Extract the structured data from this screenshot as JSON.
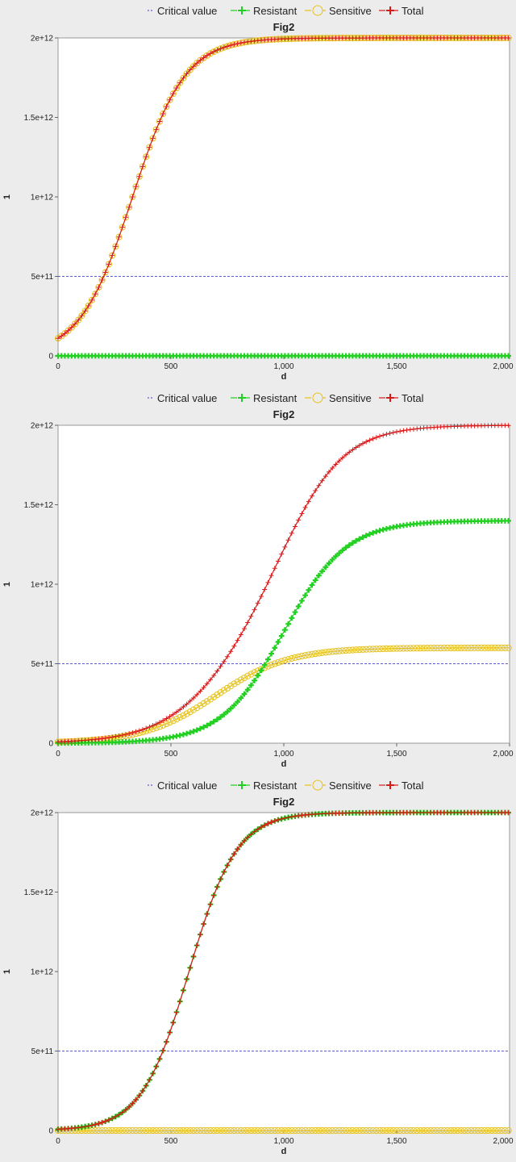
{
  "charts": [
    {
      "type": "line",
      "title": "Fig2",
      "xlabel": "d",
      "ylabel": "1",
      "xlim": [
        0,
        2000
      ],
      "ylim": [
        0,
        2000000000000
      ],
      "xticks": [
        0,
        500,
        1000,
        1500,
        2000
      ],
      "xtick_labels": [
        "0",
        "500",
        "1,000",
        "1,500",
        "2,000"
      ],
      "yticks": [
        0,
        500000000000,
        1000000000000,
        1500000000000,
        2000000000000
      ],
      "ytick_labels": [
        "0",
        "5e+11",
        "1e+12",
        "1.5e+12",
        "2e+12"
      ],
      "legend_position": "top",
      "grid": false,
      "critical_value": 500000000000,
      "series": [
        {
          "name": "Critical value",
          "color": "#5b5bd6",
          "style": "dashed"
        },
        {
          "name": "Resistant",
          "color": "#22d022",
          "marker": "plus",
          "logistic": {
            "K": 0,
            "r": 0.01,
            "x0": 0
          }
        },
        {
          "name": "Sensitive",
          "color": "#e6c21e",
          "marker": "circle",
          "logistic": {
            "K": 2000000000000,
            "r": 0.0086,
            "x0": 330
          }
        },
        {
          "name": "Total",
          "color": "#d81a1a",
          "marker": "plus",
          "logistic": {
            "K": 2000000000000,
            "r": 0.0086,
            "x0": 330
          }
        }
      ]
    },
    {
      "type": "line",
      "title": "Fig2",
      "xlabel": "d",
      "ylabel": "1",
      "xlim": [
        0,
        2000
      ],
      "ylim": [
        0,
        2000000000000
      ],
      "xticks": [
        0,
        500,
        1000,
        1500,
        2000
      ],
      "xtick_labels": [
        "0",
        "500",
        "1,000",
        "1,500",
        "2,000"
      ],
      "yticks": [
        0,
        500000000000,
        1000000000000,
        1500000000000,
        2000000000000
      ],
      "ytick_labels": [
        "0",
        "5e+11",
        "1e+12",
        "1.5e+12",
        "2e+12"
      ],
      "legend_position": "top",
      "grid": false,
      "critical_value": 500000000000,
      "series": [
        {
          "name": "Critical value",
          "color": "#5b5bd6",
          "style": "dashed"
        },
        {
          "name": "Resistant",
          "color": "#22d022",
          "marker": "plus",
          "logistic": {
            "K": 1400000000000,
            "r": 0.0072,
            "x0": 1000
          }
        },
        {
          "name": "Sensitive",
          "color": "#e6c21e",
          "marker": "circle",
          "logistic": {
            "K": 600000000000,
            "r": 0.0062,
            "x0": 700
          }
        },
        {
          "name": "Total",
          "color": "#d81a1a",
          "marker": "plus",
          "sum_of": [
            "Resistant",
            "Sensitive"
          ]
        }
      ]
    },
    {
      "type": "line",
      "title": "Fig2",
      "xlabel": "d",
      "ylabel": "1",
      "xlim": [
        0,
        2000
      ],
      "ylim": [
        0,
        2000000000000
      ],
      "xticks": [
        0,
        500,
        1000,
        1500,
        2000
      ],
      "xtick_labels": [
        "0",
        "500",
        "1,000",
        "1,500",
        "2,000"
      ],
      "yticks": [
        0,
        500000000000,
        1000000000000,
        1500000000000,
        2000000000000
      ],
      "ytick_labels": [
        "0",
        "5e+11",
        "1e+12",
        "1.5e+12",
        "2e+12"
      ],
      "legend_position": "top",
      "grid": false,
      "critical_value": 500000000000,
      "series": [
        {
          "name": "Critical value",
          "color": "#5b5bd6",
          "style": "dashed"
        },
        {
          "name": "Resistant",
          "color": "#22d022",
          "marker": "plus",
          "logistic": {
            "K": 2000000000000,
            "r": 0.0095,
            "x0": 580
          }
        },
        {
          "name": "Sensitive",
          "color": "#e6c21e",
          "marker": "circle",
          "logistic": {
            "K": 0,
            "r": 0.01,
            "x0": 0
          }
        },
        {
          "name": "Total",
          "color": "#d81a1a",
          "marker": "plus",
          "logistic": {
            "K": 2000000000000,
            "r": 0.0095,
            "x0": 580
          }
        }
      ]
    }
  ]
}
